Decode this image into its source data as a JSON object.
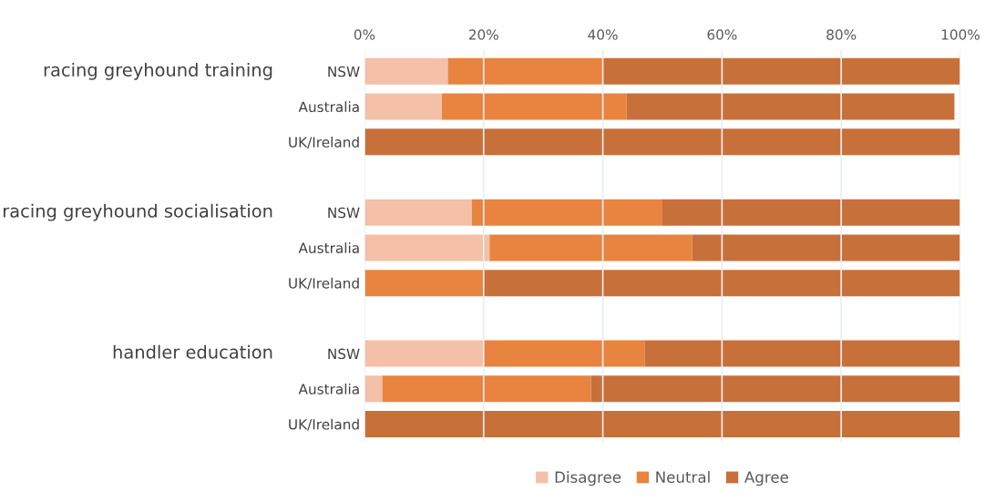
{
  "chart_data": {
    "type": "bar",
    "orientation": "horizontal",
    "stacked": true,
    "categories": [
      "NSW",
      "Australia",
      "UK/Ireland",
      null,
      "NSW",
      "Australia",
      "UK/Ireland",
      null,
      "NSW",
      "Australia",
      "UK/Ireland"
    ],
    "series": [
      {
        "name": "Disagree",
        "color": "#f4c0a8",
        "values": [
          14,
          13,
          0,
          null,
          18,
          21,
          0,
          null,
          20,
          3,
          0
        ]
      },
      {
        "name": "Neutral",
        "color": "#e8843f",
        "values": [
          26,
          31,
          0,
          null,
          32,
          34,
          20,
          null,
          27,
          35,
          0
        ]
      },
      {
        "name": "Agree",
        "color": "#c8703a",
        "values": [
          60,
          55,
          100,
          null,
          50,
          45,
          80,
          null,
          53,
          62,
          100
        ]
      }
    ],
    "annotations": [
      "racing greyhound training",
      "racing greyhound socialisation",
      "handler education"
    ],
    "xlim": [
      0,
      100
    ],
    "xticks": [
      {
        "value": 0,
        "label": "0%"
      },
      {
        "value": 20,
        "label": "20%"
      },
      {
        "value": 40,
        "label": "40%"
      },
      {
        "value": 60,
        "label": "60%"
      },
      {
        "value": 80,
        "label": "80%"
      },
      {
        "value": 100,
        "label": "100%"
      }
    ],
    "grid": "x",
    "legend": "bottom"
  }
}
